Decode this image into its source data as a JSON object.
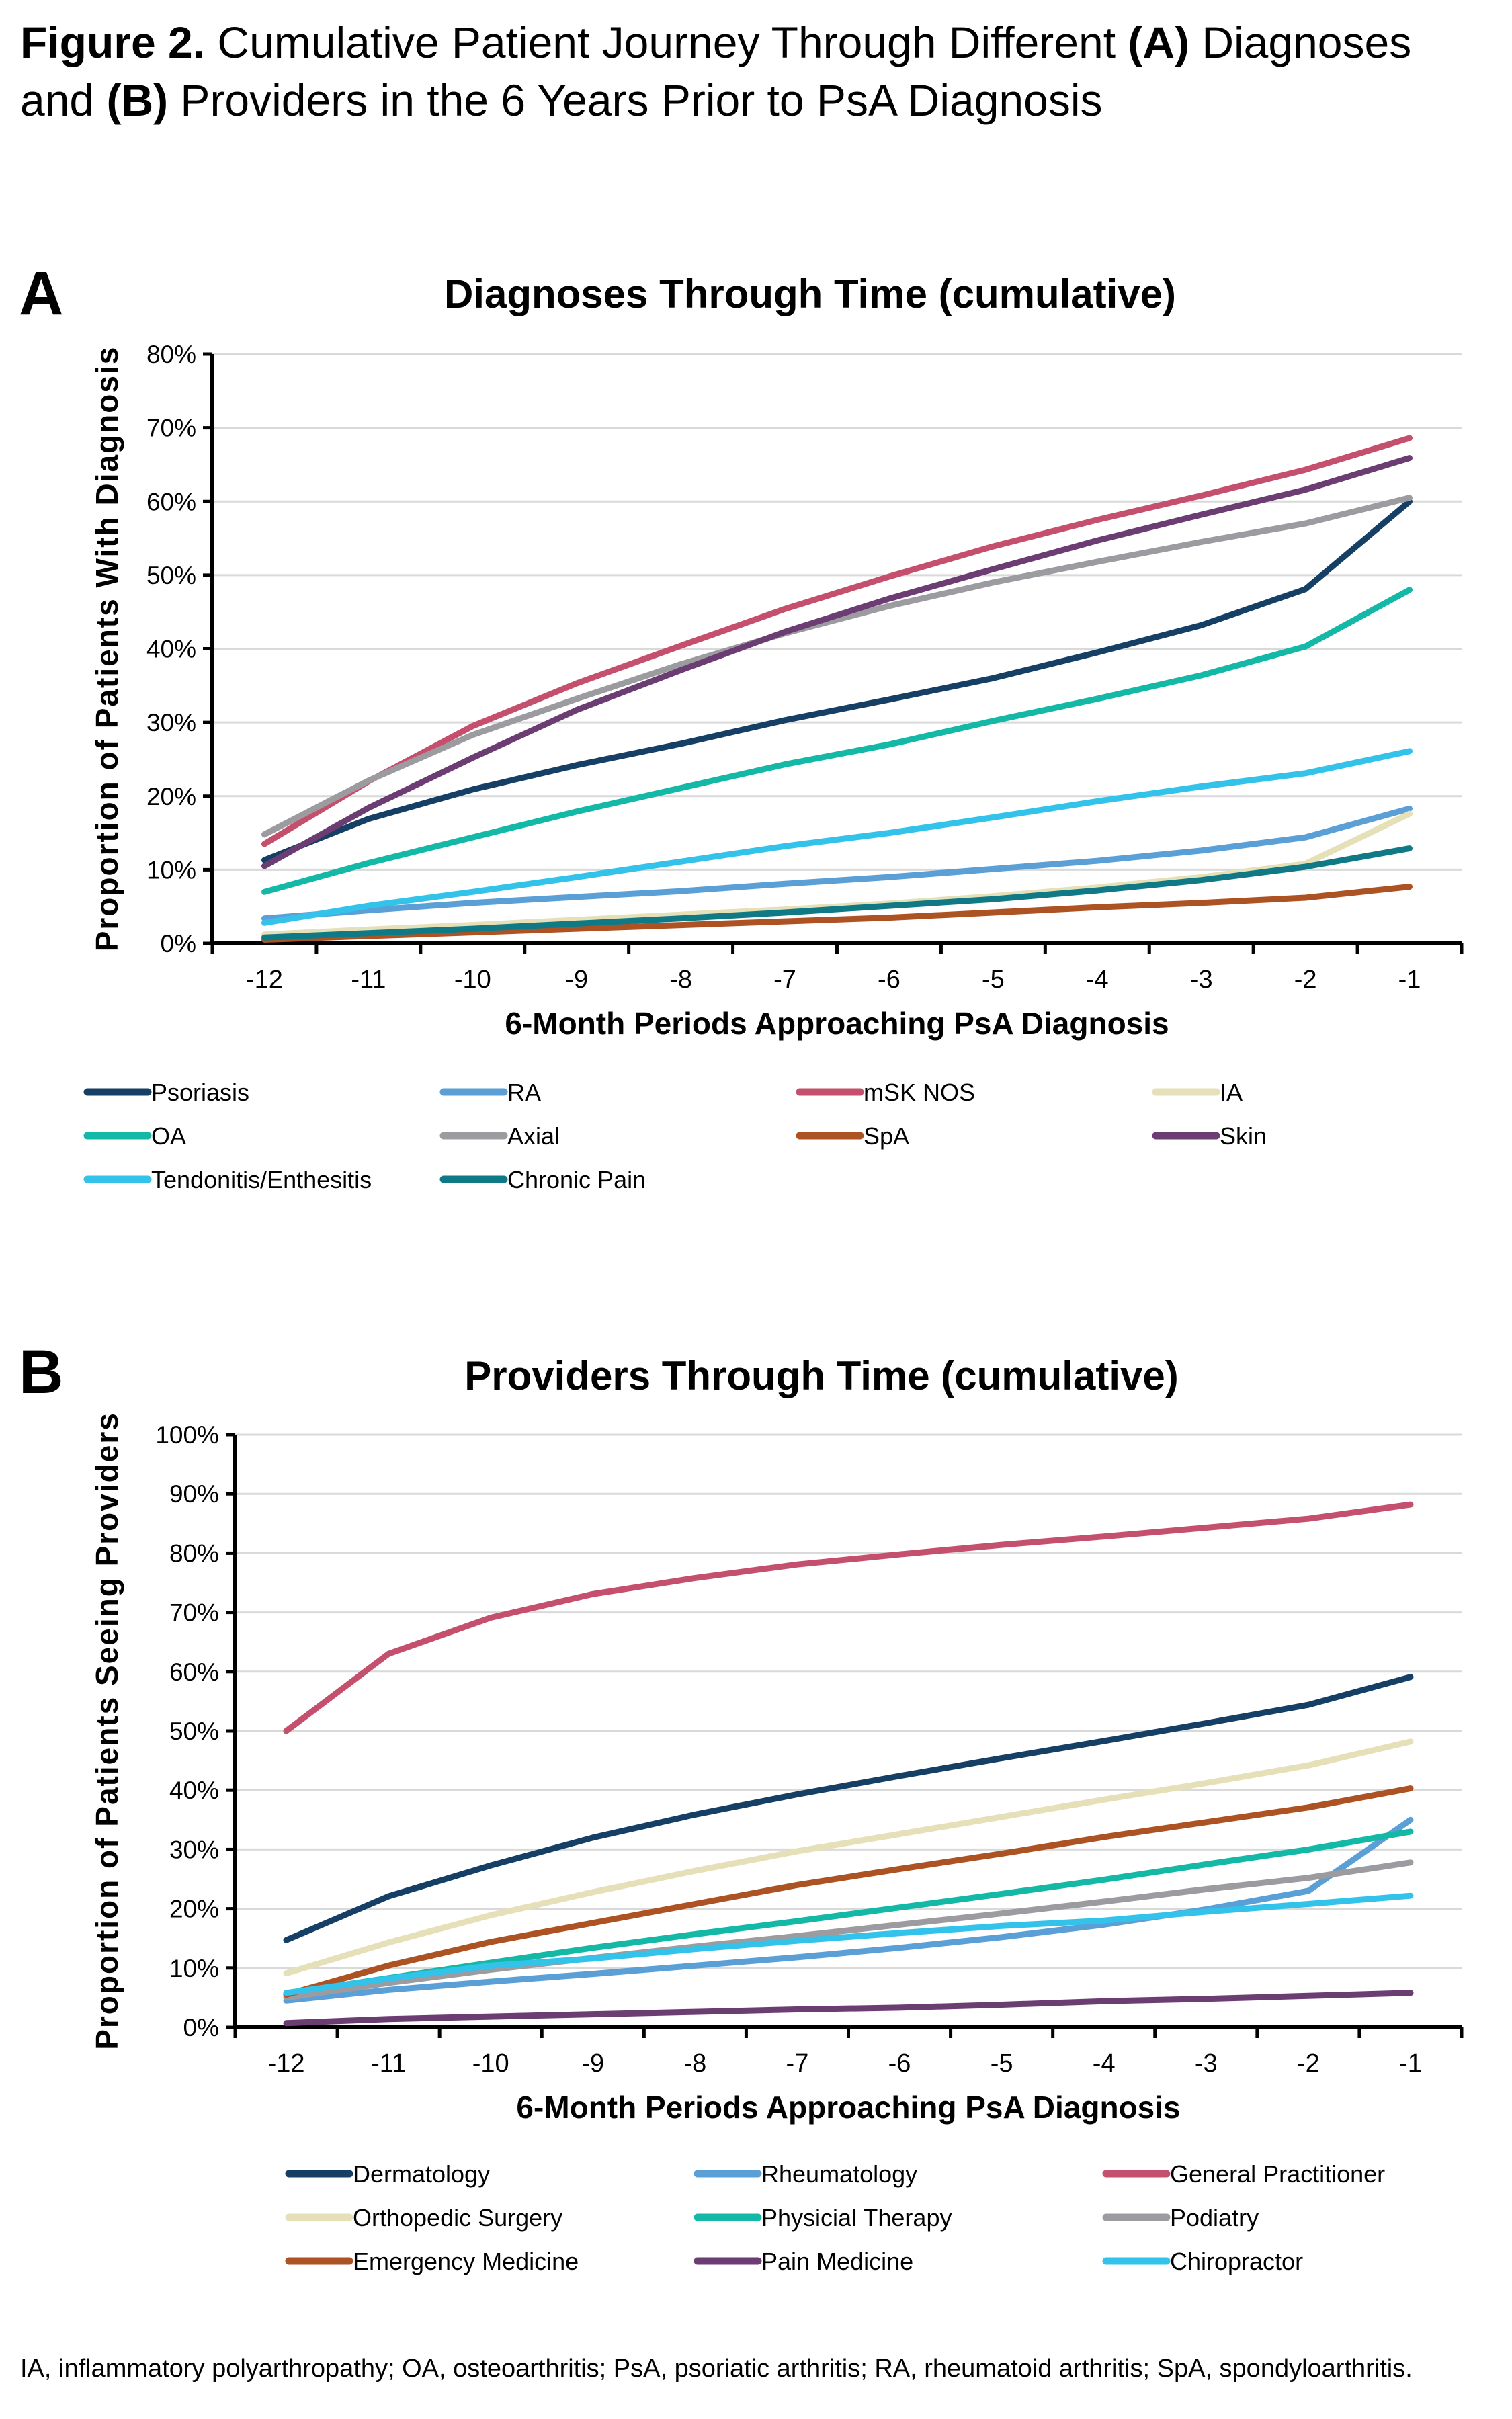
{
  "figure": {
    "title_prefix": "Figure 2.",
    "title_parts": [
      {
        "text": " Cumulative Patient Journey Through Different ",
        "bold": false
      },
      {
        "text": "(A)",
        "bold": true
      },
      {
        "text": " Diagnoses and ",
        "bold": false
      },
      {
        "text": "(B)",
        "bold": true
      },
      {
        "text": " Providers in the 6 Years Prior to PsA Diagnosis",
        "bold": false
      }
    ],
    "panel_a_letter": "A",
    "panel_b_letter": "B",
    "footnote": "IA, inflammatory polyarthropathy; OA, osteoarthritis; PsA, psoriatic arthritis; RA, rheumatoid arthritis; SpA, spondyloarthritis."
  },
  "chart_data": [
    {
      "type": "line",
      "title": "Diagnoses Through Time (cumulative)",
      "xlabel": "6-Month Periods Approaching PsA Diagnosis",
      "ylabel": "Proportion of Patients With Diagnosis",
      "x": [
        "-12",
        "-11",
        "-10",
        "-9",
        "-8",
        "-7",
        "-6",
        "-5",
        "-4",
        "-3",
        "-2",
        "-1"
      ],
      "ylim": [
        0,
        80
      ],
      "yticks": [
        "0%",
        "10%",
        "20%",
        "30%",
        "40%",
        "50%",
        "60%",
        "70%",
        "80%"
      ],
      "y_unit": "%",
      "grid": true,
      "legend_position": "bottom",
      "legend_columns": 4,
      "series": [
        {
          "name": "Psoriasis",
          "color": "#163f66",
          "values": [
            11.3,
            16.9,
            20.9,
            24.2,
            27.1,
            30.3,
            33.1,
            36.0,
            39.5,
            43.2,
            48.1,
            60.0
          ]
        },
        {
          "name": "RA",
          "color": "#5a9fd6",
          "values": [
            3.4,
            4.5,
            5.5,
            6.3,
            7.1,
            8.1,
            9.0,
            10.1,
            11.2,
            12.6,
            14.4,
            18.3
          ]
        },
        {
          "name": "mSK NOS",
          "color": "#c4506e",
          "values": [
            13.5,
            22.0,
            29.5,
            35.3,
            40.4,
            45.4,
            49.8,
            53.9,
            57.5,
            60.8,
            64.3,
            68.6
          ]
        },
        {
          "name": "IA",
          "color": "#e6e0b8",
          "values": [
            1.2,
            1.9,
            2.5,
            3.2,
            3.9,
            4.6,
            5.4,
            6.4,
            7.6,
            9.0,
            10.8,
            17.6
          ]
        },
        {
          "name": "OA",
          "color": "#13b8a6",
          "values": [
            7.0,
            10.9,
            14.4,
            17.9,
            21.1,
            24.3,
            27.0,
            30.2,
            33.2,
            36.4,
            40.3,
            48.0
          ]
        },
        {
          "name": "Axial",
          "color": "#9c9ca0",
          "values": [
            14.8,
            22.1,
            28.3,
            33.2,
            37.9,
            42.1,
            45.8,
            49.0,
            51.8,
            54.5,
            57.0,
            60.5
          ]
        },
        {
          "name": "SpA",
          "color": "#ad5223",
          "values": [
            0.5,
            1.0,
            1.5,
            2.0,
            2.5,
            3.0,
            3.5,
            4.2,
            4.9,
            5.5,
            6.2,
            7.7
          ]
        },
        {
          "name": "Skin",
          "color": "#6b3d73",
          "values": [
            10.5,
            18.4,
            25.2,
            31.7,
            37.1,
            42.3,
            46.8,
            50.8,
            54.7,
            58.2,
            61.6,
            65.9
          ]
        },
        {
          "name": "Tendonitis/Enthesitis",
          "color": "#33c3ea",
          "values": [
            2.8,
            5.1,
            7.0,
            9.0,
            11.1,
            13.2,
            15.0,
            17.1,
            19.3,
            21.3,
            23.1,
            26.1
          ]
        },
        {
          "name": "Chronic Pain",
          "color": "#0f7a85",
          "values": [
            0.8,
            1.4,
            2.0,
            2.7,
            3.4,
            4.2,
            5.1,
            6.0,
            7.2,
            8.6,
            10.4,
            12.9
          ]
        }
      ]
    },
    {
      "type": "line",
      "title": "Providers Through Time (cumulative)",
      "xlabel": "6-Month Periods Approaching PsA Diagnosis",
      "ylabel": "Proportion of Patients Seeing Providers",
      "x": [
        "-12",
        "-11",
        "-10",
        "-9",
        "-8",
        "-7",
        "-6",
        "-5",
        "-4",
        "-3",
        "-2",
        "-1"
      ],
      "ylim": [
        0,
        100
      ],
      "yticks": [
        "0%",
        "10%",
        "20%",
        "30%",
        "40%",
        "50%",
        "60%",
        "70%",
        "80%",
        "90%",
        "100%"
      ],
      "y_unit": "%",
      "grid": true,
      "legend_position": "bottom",
      "legend_columns": 3,
      "series": [
        {
          "name": "Dermatology",
          "color": "#163f66",
          "values": [
            14.7,
            22.1,
            27.3,
            32.0,
            35.9,
            39.3,
            42.4,
            45.4,
            48.3,
            51.3,
            54.4,
            59.1
          ]
        },
        {
          "name": "Rheumatology",
          "color": "#5a9fd6",
          "values": [
            4.5,
            6.3,
            7.7,
            9.0,
            10.4,
            11.8,
            13.4,
            15.2,
            17.3,
            19.9,
            23.0,
            35.0
          ]
        },
        {
          "name": "General Practitioner",
          "color": "#c4506e",
          "values": [
            50.0,
            63.0,
            69.1,
            73.1,
            75.8,
            78.1,
            79.8,
            81.4,
            82.8,
            84.3,
            85.8,
            88.2
          ]
        },
        {
          "name": "Orthopedic Surgery",
          "color": "#e6e0b8",
          "values": [
            9.1,
            14.3,
            18.9,
            22.8,
            26.4,
            29.7,
            32.6,
            35.5,
            38.4,
            41.2,
            44.2,
            48.2
          ]
        },
        {
          "name": "Physicial Therapy",
          "color": "#13b8a6",
          "values": [
            5.7,
            8.3,
            10.9,
            13.4,
            15.7,
            17.9,
            20.2,
            22.5,
            24.9,
            27.5,
            30.0,
            33.0
          ]
        },
        {
          "name": "Podiatry",
          "color": "#9c9ca0",
          "values": [
            5.0,
            7.5,
            9.7,
            11.7,
            13.6,
            15.4,
            17.3,
            19.2,
            21.2,
            23.3,
            25.2,
            27.8
          ]
        },
        {
          "name": "Emergency Medicine",
          "color": "#ad5223",
          "values": [
            5.5,
            10.4,
            14.4,
            17.6,
            20.8,
            24.0,
            26.7,
            29.3,
            32.1,
            34.6,
            37.1,
            40.3
          ]
        },
        {
          "name": "Pain Medicine",
          "color": "#6b3d73",
          "values": [
            0.7,
            1.4,
            1.8,
            2.2,
            2.6,
            3.0,
            3.3,
            3.8,
            4.4,
            4.8,
            5.3,
            5.8
          ]
        },
        {
          "name": "Chiropractor",
          "color": "#33c3ea",
          "values": [
            5.8,
            8.2,
            10.4,
            11.6,
            13.2,
            14.6,
            15.9,
            17.1,
            18.0,
            19.5,
            20.8,
            22.2
          ]
        }
      ]
    }
  ]
}
